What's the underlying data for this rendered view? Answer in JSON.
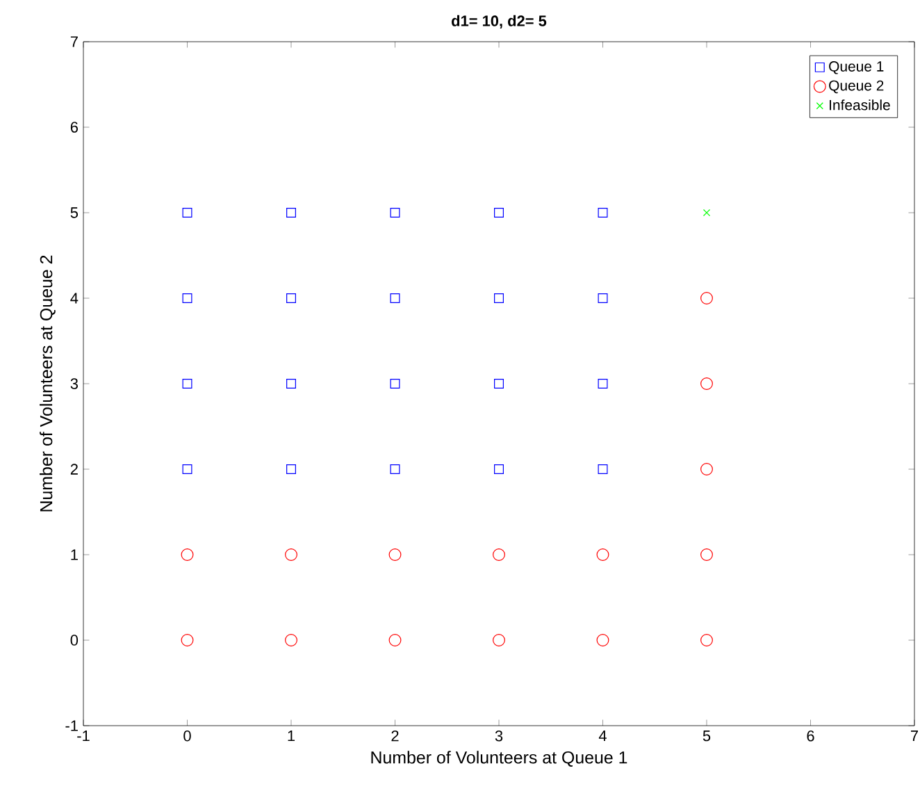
{
  "chart_data": {
    "type": "scatter",
    "title": "d1= 10, d2= 5",
    "xlabel": "Number of Volunteers at Queue 1",
    "ylabel": "Number of Volunteers at Queue 2",
    "xlim": [
      -1,
      7
    ],
    "ylim": [
      -1,
      7
    ],
    "xticks": [
      -1,
      0,
      1,
      2,
      3,
      4,
      5,
      6,
      7
    ],
    "yticks": [
      -1,
      0,
      1,
      2,
      3,
      4,
      5,
      6,
      7
    ],
    "grid": false,
    "legend": "top right",
    "series": [
      {
        "name": "Queue 1",
        "color": "#0000ff",
        "marker": "square",
        "x": [
          0,
          0,
          0,
          0,
          1,
          1,
          1,
          1,
          2,
          2,
          2,
          2,
          3,
          3,
          3,
          3,
          4,
          4,
          4,
          4
        ],
        "values": [
          2,
          3,
          4,
          5,
          2,
          3,
          4,
          5,
          2,
          3,
          4,
          5,
          2,
          3,
          4,
          5,
          2,
          3,
          4,
          5
        ]
      },
      {
        "name": "Queue 2",
        "color": "#ff0000",
        "marker": "circle",
        "x": [
          0,
          0,
          1,
          1,
          2,
          2,
          3,
          3,
          4,
          4,
          5,
          5,
          5,
          5,
          5
        ],
        "values": [
          0,
          1,
          0,
          1,
          0,
          1,
          0,
          1,
          0,
          1,
          0,
          1,
          2,
          3,
          4
        ]
      },
      {
        "name": "Infeasible",
        "color": "#00ff00",
        "marker": "cross",
        "x": [
          5
        ],
        "values": [
          5
        ]
      }
    ]
  }
}
